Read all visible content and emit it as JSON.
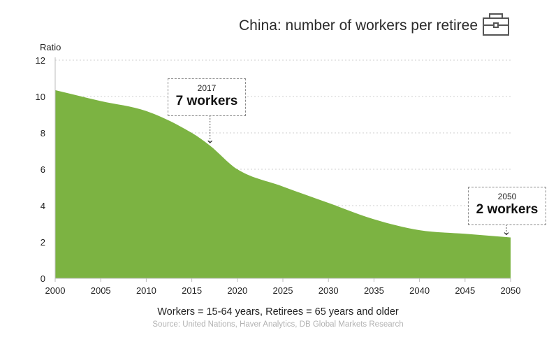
{
  "header": {
    "title": "China: number of workers per retiree",
    "icon": "briefcase-icon"
  },
  "footer": {
    "caption": "Workers = 15-64 years, Retirees = 65 years and older",
    "source": "Source: United Nations, Haver Analytics, DB Global Markets Research"
  },
  "callouts": {
    "c2017": {
      "year": "2017",
      "value": "7 workers"
    },
    "c2050": {
      "year": "2050",
      "value": "2 workers"
    }
  },
  "colors": {
    "area": "#7cb342",
    "grid": "#cfcfcf",
    "axis": "#bdbdbd",
    "text": "#222222",
    "source": "#b3b3b3"
  },
  "chart_data": {
    "type": "area",
    "title": "China: number of workers per retiree",
    "ylabel": "Ratio",
    "xlabel": "",
    "xlim": [
      2000,
      2050
    ],
    "ylim": [
      0,
      12
    ],
    "x_ticks": [
      "2000",
      "2005",
      "2010",
      "2015",
      "2020",
      "2025",
      "2030",
      "2035",
      "2040",
      "2045",
      "2050"
    ],
    "y_ticks": [
      "0",
      "2",
      "4",
      "6",
      "8",
      "10",
      "12"
    ],
    "grid": "horizontal-dotted",
    "series": [
      {
        "x": [
          2000,
          2005,
          2010,
          2015,
          2017,
          2020,
          2025,
          2030,
          2035,
          2040,
          2045,
          2050
        ],
        "values": [
          10.35,
          9.75,
          9.2,
          8.0,
          7.3,
          6.0,
          5.05,
          4.15,
          3.25,
          2.65,
          2.45,
          2.25
        ]
      }
    ],
    "annotations": [
      {
        "x": 2017,
        "y": 7.3,
        "label_year": "2017",
        "label": "7 workers"
      },
      {
        "x": 2050,
        "y": 2.25,
        "label_year": "2050",
        "label": "2 workers"
      }
    ]
  }
}
